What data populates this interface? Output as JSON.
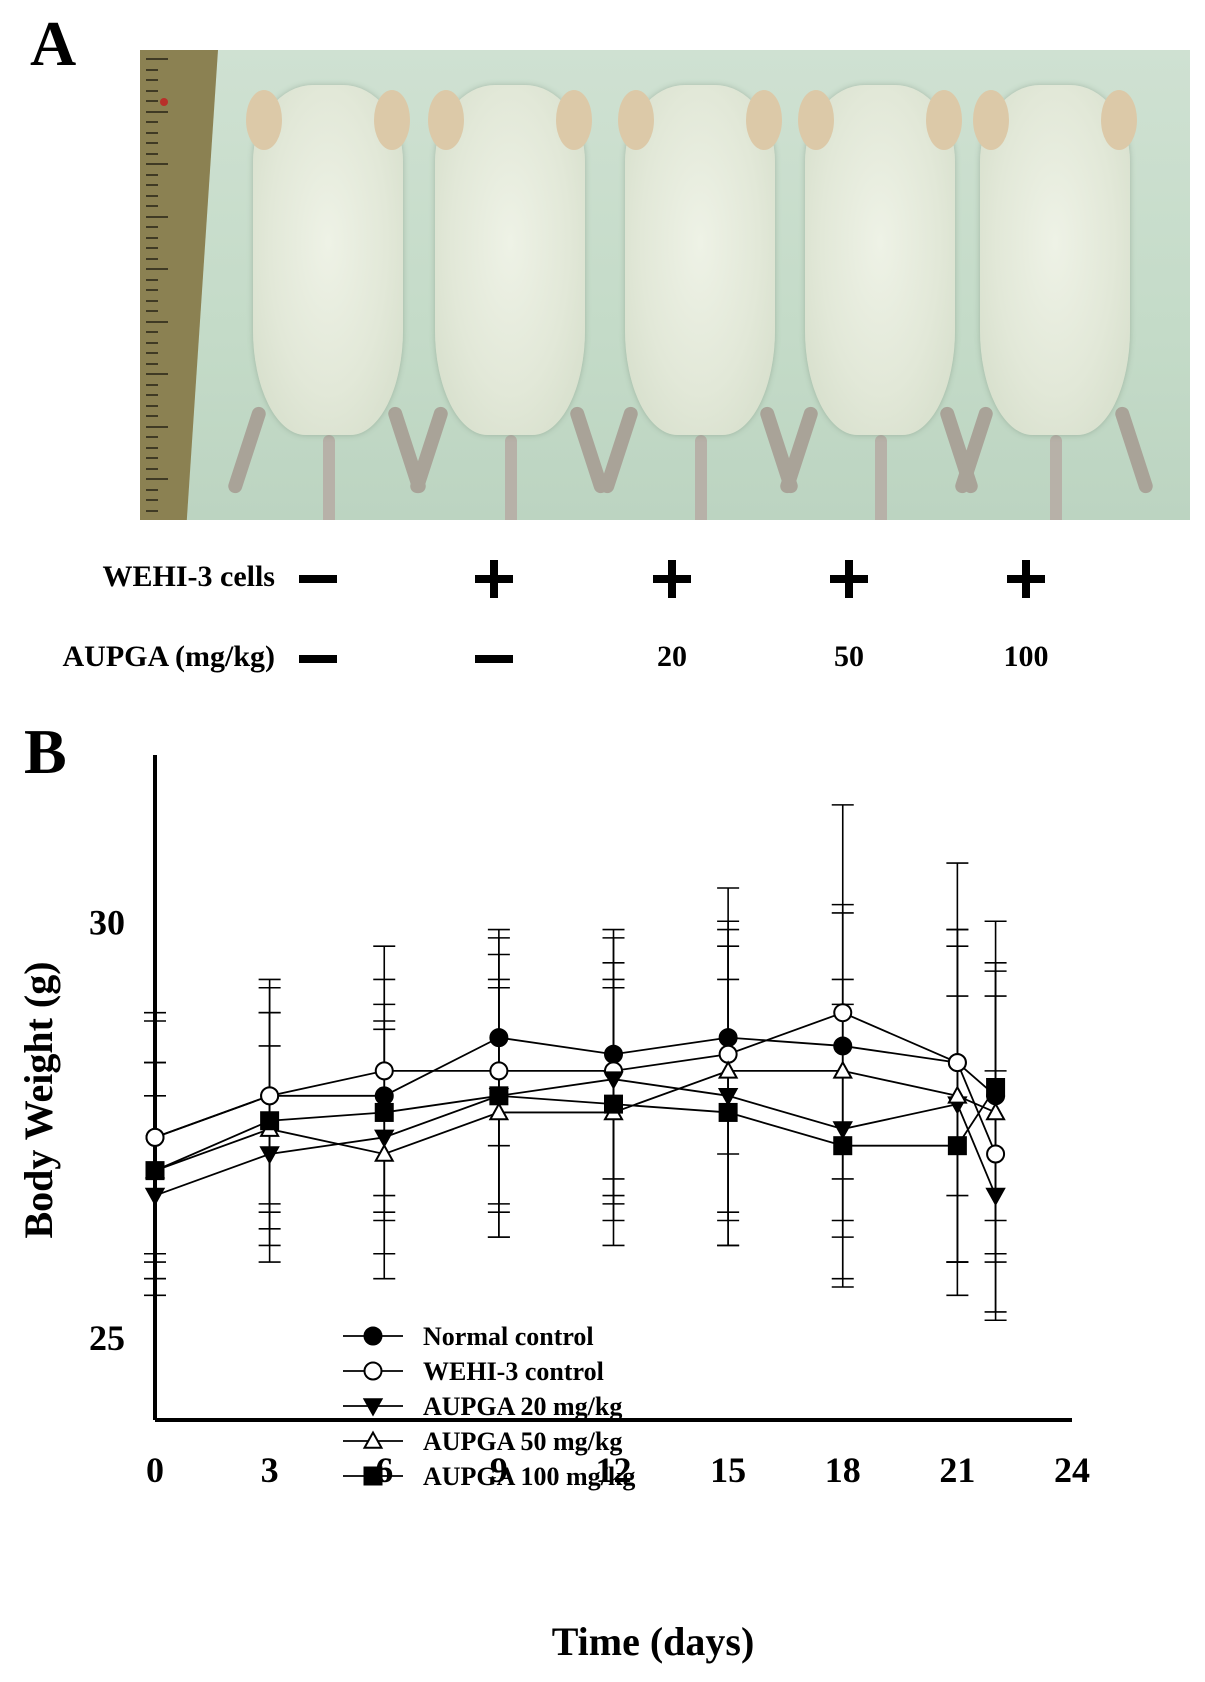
{
  "panel_a": {
    "label": "A",
    "rows": [
      {
        "label": "WEHI-3 cells",
        "values": [
          "−",
          "+",
          "+",
          "+",
          "+"
        ]
      },
      {
        "label": "AUPGA (mg/kg)",
        "values": [
          "−",
          "−",
          "20",
          "50",
          "100"
        ]
      }
    ]
  },
  "panel_b": {
    "label": "B"
  },
  "chart_data": {
    "type": "line",
    "xlabel": "Time (days)",
    "ylabel": "Body Weight (g)",
    "xlim": [
      0,
      24
    ],
    "ylim": [
      24,
      32
    ],
    "xticks": [
      0,
      3,
      6,
      9,
      12,
      15,
      18,
      21,
      24
    ],
    "yticks": [
      25,
      30
    ],
    "x": [
      0,
      3,
      6,
      9,
      12,
      15,
      18,
      21,
      22
    ],
    "legend_position": "lower-center",
    "grid": false,
    "series": [
      {
        "name": "Normal control",
        "marker": "circle-filled",
        "values": [
          27.4,
          27.9,
          27.9,
          28.6,
          28.4,
          28.6,
          28.5,
          28.3,
          27.9
        ],
        "errors": [
          1.5,
          1.4,
          1.4,
          1.3,
          1.5,
          1.4,
          1.6,
          1.6,
          1.5
        ]
      },
      {
        "name": "WEHI-3 control",
        "marker": "circle-open",
        "values": [
          27.4,
          27.9,
          28.2,
          28.2,
          28.2,
          28.4,
          28.9,
          28.3,
          27.2
        ],
        "errors": [
          1.4,
          1.3,
          1.5,
          1.6,
          1.6,
          2.0,
          2.5,
          2.4,
          1.9
        ]
      },
      {
        "name": "AUPGA 20 mg/kg",
        "marker": "triangle-down-filled",
        "values": [
          26.7,
          27.2,
          27.4,
          27.9,
          28.1,
          27.9,
          27.5,
          27.8,
          26.7
        ],
        "errors": [
          1.2,
          1.3,
          1.4,
          1.7,
          1.4,
          1.8,
          1.8,
          1.9,
          1.5
        ]
      },
      {
        "name": "AUPGA 50 mg/kg",
        "marker": "triangle-up-open",
        "values": [
          27.0,
          27.5,
          27.2,
          27.7,
          27.7,
          28.2,
          28.2,
          27.9,
          27.7
        ],
        "errors": [
          1.3,
          1.4,
          1.5,
          1.5,
          1.6,
          1.7,
          2.0,
          2.0,
          1.8
        ]
      },
      {
        "name": "AUPGA 100 mg/kg",
        "marker": "square-filled",
        "values": [
          27.0,
          27.6,
          27.7,
          27.9,
          27.8,
          27.7,
          27.3,
          27.3,
          28.0
        ],
        "errors": [
          1.3,
          1.3,
          1.3,
          1.4,
          1.4,
          1.6,
          1.7,
          1.8,
          2.0
        ]
      }
    ]
  }
}
